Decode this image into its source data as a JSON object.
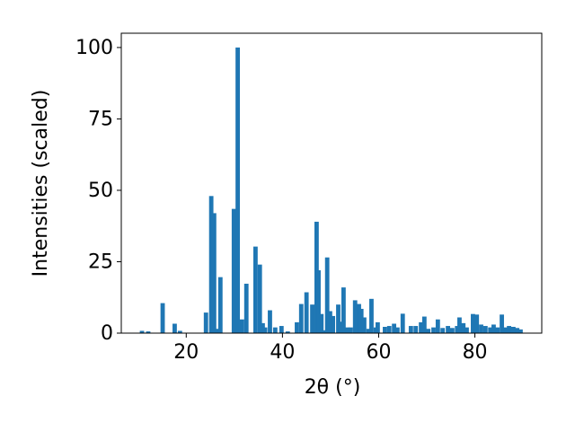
{
  "chart_data": {
    "type": "bar",
    "xlabel": "2θ (°)",
    "ylabel": "Intensities (scaled)",
    "x": [
      10.8,
      12.1,
      15.1,
      17.6,
      18.7,
      24.1,
      25.2,
      25.8,
      26.4,
      27.1,
      29.9,
      30.7,
      31.6,
      32.5,
      34.4,
      35.3,
      35.9,
      36.4,
      37.4,
      38.5,
      39.8,
      41.1,
      43.0,
      43.9,
      45.0,
      46.2,
      47.1,
      47.5,
      48.1,
      48.6,
      49.3,
      49.9,
      50.5,
      51.6,
      52.2,
      52.7,
      53.5,
      54.2,
      55.1,
      55.9,
      56.4,
      57.0,
      57.9,
      58.5,
      59.4,
      59.8,
      61.3,
      62.2,
      63.2,
      63.9,
      65.0,
      66.7,
      67.7,
      68.8,
      69.5,
      70.3,
      71.4,
      72.3,
      73.3,
      74.4,
      75.3,
      76.3,
      76.8,
      77.6,
      78.3,
      79.6,
      80.4,
      81.3,
      82.2,
      83.2,
      83.9,
      84.7,
      85.6,
      86.4,
      87.1,
      88.0,
      88.8,
      89.5
    ],
    "values": [
      0.8,
      0.6,
      10.5,
      3.3,
      0.8,
      7.2,
      48,
      42,
      1.5,
      19.6,
      43.5,
      100,
      4.8,
      17.3,
      30.3,
      24,
      3.5,
      2,
      8,
      2,
      2.5,
      0.6,
      3.8,
      10.2,
      14.3,
      10,
      39,
      22,
      6.7,
      1,
      26.5,
      7.7,
      6,
      10,
      4,
      16,
      2,
      2,
      11.5,
      10.2,
      8.5,
      5.5,
      1.5,
      12,
      2,
      3.8,
      2.2,
      2.5,
      3.3,
      2,
      6.8,
      2.5,
      2.5,
      3.8,
      5.8,
      1.5,
      2,
      4.8,
      1.8,
      2.5,
      1.8,
      2.5,
      5.5,
      3.5,
      2,
      6.7,
      6.5,
      3,
      2.5,
      2,
      3,
      2,
      6.5,
      2,
      2.5,
      2.2,
      1.8,
      1.3
    ],
    "color": "#1f77b4",
    "xlim": [
      6.5,
      93.9
    ],
    "xticks": [
      20,
      40,
      60,
      80
    ],
    "ylim": [
      0,
      105
    ],
    "yticks": [
      0,
      25,
      50,
      75,
      100
    ]
  }
}
